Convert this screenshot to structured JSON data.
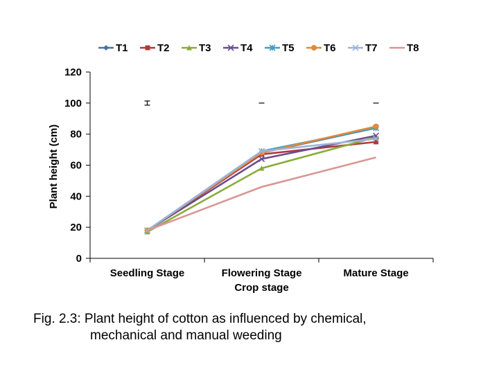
{
  "chart_data": {
    "type": "line",
    "categories": [
      "Seedling Stage",
      "Flowering Stage",
      "Mature Stage"
    ],
    "xlabel": "Crop stage",
    "ylabel": "Plant height (cm)",
    "ylim": [
      0,
      120
    ],
    "yticks": [
      0,
      20,
      40,
      60,
      80,
      100,
      120
    ],
    "grid": false,
    "legend_position": "top",
    "series": [
      {
        "name": "T1",
        "color": "#4a6fa5",
        "marker": "diamond",
        "values": [
          18,
          68,
          84
        ]
      },
      {
        "name": "T2",
        "color": "#b03a3a",
        "marker": "square",
        "values": [
          18,
          67,
          75
        ]
      },
      {
        "name": "T3",
        "color": "#8aab3c",
        "marker": "triangle",
        "values": [
          17,
          58,
          78
        ]
      },
      {
        "name": "T4",
        "color": "#6a4c8c",
        "marker": "x",
        "values": [
          18,
          64,
          79
        ]
      },
      {
        "name": "T5",
        "color": "#3f9fbf",
        "marker": "star",
        "values": [
          18,
          69,
          84
        ]
      },
      {
        "name": "T6",
        "color": "#e08a3c",
        "marker": "circle",
        "values": [
          18,
          68,
          85
        ]
      },
      {
        "name": "T7",
        "color": "#9db4d8",
        "marker": "x",
        "values": [
          18,
          69,
          77
        ]
      },
      {
        "name": "T8",
        "color": "#d99694",
        "marker": "none",
        "values": [
          18,
          46,
          65
        ]
      }
    ],
    "error_bars": [
      {
        "category": "Seedling Stage",
        "value": 100,
        "style": "capped"
      },
      {
        "category": "Flowering Stage",
        "value": 100,
        "style": "dash"
      },
      {
        "category": "Mature Stage",
        "value": 100,
        "style": "dash"
      }
    ]
  },
  "caption": {
    "line1": "Fig. 2.3: Plant height of cotton as influenced by chemical,",
    "line2": "mechanical and manual weeding"
  }
}
